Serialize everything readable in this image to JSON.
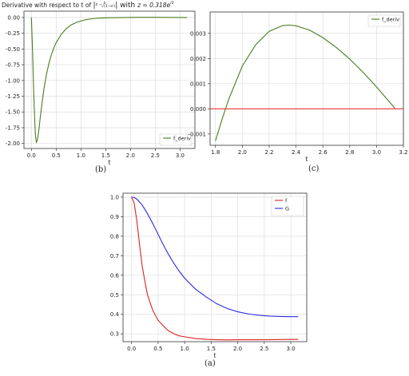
{
  "chart_data": [
    {
      "id": "b",
      "type": "line",
      "title": "Derivative with respect to t of |z − z/√(1−e^t)| with z = 0.318e^{i1}",
      "title_prefix": "Derivative with respect to t of",
      "title_z_value": "z = 0.318e",
      "title_z_exp": "i1",
      "xlabel": "t",
      "ylabel": "",
      "xlim": [
        -0.15,
        3.3
      ],
      "ylim": [
        -2.08,
        0.1
      ],
      "xticks": [
        "0.0",
        "0.5",
        "1.0",
        "1.5",
        "2.0",
        "2.5",
        "3.0"
      ],
      "yticks": [
        "0.00",
        "-0.25",
        "-0.50",
        "-0.75",
        "-1.00",
        "-1.25",
        "-1.50",
        "-1.75",
        "-2.00"
      ],
      "grid": true,
      "legend_position": "lower right",
      "series": [
        {
          "name": "f_deriv",
          "color": "#4a7d1e",
          "x": [
            0.0,
            0.02,
            0.04,
            0.06,
            0.08,
            0.1,
            0.12,
            0.14,
            0.16,
            0.18,
            0.2,
            0.25,
            0.3,
            0.35,
            0.4,
            0.45,
            0.5,
            0.6,
            0.7,
            0.8,
            0.9,
            1.0,
            1.1,
            1.2,
            1.3,
            1.4,
            1.5,
            1.6,
            1.8,
            2.0,
            2.2,
            2.5,
            2.8,
            3.14
          ],
          "y": [
            0.0,
            -0.45,
            -1.0,
            -1.5,
            -1.85,
            -1.98,
            -1.95,
            -1.85,
            -1.72,
            -1.58,
            -1.45,
            -1.15,
            -0.92,
            -0.74,
            -0.6,
            -0.49,
            -0.4,
            -0.27,
            -0.18,
            -0.12,
            -0.08,
            -0.055,
            -0.035,
            -0.022,
            -0.014,
            -0.009,
            -0.006,
            -0.004,
            -0.002,
            0.001,
            0.002,
            0.002,
            0.001,
            0.0
          ]
        }
      ]
    },
    {
      "id": "c",
      "type": "line",
      "title": "",
      "xlabel": "t",
      "ylabel": "",
      "xlim": [
        1.76,
        3.2
      ],
      "ylim": [
        -0.00145,
        0.00385
      ],
      "xticks": [
        "1.8",
        "2.0",
        "2.2",
        "2.4",
        "2.6",
        "2.8",
        "3.0",
        "3.2"
      ],
      "yticks": [
        "0.003",
        "0.002",
        "0.001",
        "0.000",
        "-0.001"
      ],
      "grid": true,
      "legend_position": "upper right",
      "series": [
        {
          "name": "f_deriv",
          "color": "#4a7d1e",
          "x": [
            1.8,
            1.85,
            1.9,
            2.0,
            2.1,
            2.2,
            2.3,
            2.35,
            2.4,
            2.5,
            2.6,
            2.7,
            2.8,
            2.9,
            3.0,
            3.14
          ],
          "y": [
            -0.00128,
            -0.0004,
            0.0004,
            0.0017,
            0.00255,
            0.00308,
            0.00331,
            0.00333,
            0.0033,
            0.00313,
            0.00283,
            0.00244,
            0.00198,
            0.00145,
            0.00087,
            0.0
          ]
        },
        {
          "name": "",
          "color": "#ee3333",
          "x": [
            1.76,
            3.2
          ],
          "y": [
            0.0,
            0.0
          ]
        }
      ]
    },
    {
      "id": "a",
      "type": "line",
      "title": "",
      "xlabel": "t",
      "ylabel": "",
      "xlim": [
        -0.16,
        3.3
      ],
      "ylim": [
        0.26,
        1.02
      ],
      "xticks": [
        "0.0",
        "0.5",
        "1.0",
        "1.5",
        "2.0",
        "2.5",
        "3.0"
      ],
      "yticks": [
        "1.0",
        "0.9",
        "0.8",
        "0.7",
        "0.6",
        "0.5",
        "0.4",
        "0.3"
      ],
      "grid": true,
      "legend_position": "upper right",
      "series": [
        {
          "name": "f",
          "color": "#dd2222",
          "x": [
            0.0,
            0.05,
            0.1,
            0.15,
            0.2,
            0.25,
            0.3,
            0.4,
            0.5,
            0.6,
            0.7,
            0.8,
            0.9,
            1.0,
            1.2,
            1.4,
            1.6,
            1.8,
            2.0,
            2.5,
            3.14
          ],
          "y": [
            1.0,
            0.97,
            0.88,
            0.76,
            0.65,
            0.57,
            0.5,
            0.42,
            0.37,
            0.34,
            0.315,
            0.3,
            0.29,
            0.285,
            0.276,
            0.272,
            0.27,
            0.269,
            0.27,
            0.27,
            0.272
          ]
        },
        {
          "name": "G",
          "color": "#2b2bdd",
          "x": [
            0.0,
            0.05,
            0.1,
            0.2,
            0.3,
            0.4,
            0.5,
            0.6,
            0.7,
            0.8,
            0.9,
            1.0,
            1.2,
            1.4,
            1.6,
            1.8,
            2.0,
            2.2,
            2.4,
            2.6,
            2.8,
            3.0,
            3.14
          ],
          "y": [
            1.0,
            0.998,
            0.99,
            0.96,
            0.915,
            0.865,
            0.81,
            0.755,
            0.705,
            0.66,
            0.62,
            0.585,
            0.53,
            0.49,
            0.455,
            0.43,
            0.413,
            0.402,
            0.395,
            0.391,
            0.389,
            0.388,
            0.388
          ]
        }
      ]
    }
  ],
  "captions": {
    "b": "(b)",
    "c": "(c)",
    "a": "(a)"
  }
}
